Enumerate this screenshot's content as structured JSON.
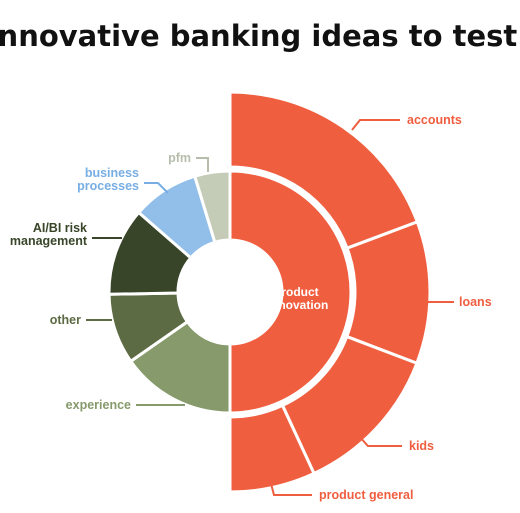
{
  "chart_data": {
    "type": "pie",
    "subtype": "sunburst",
    "title": "Innovative banking ideas to test",
    "inner_ring": [
      {
        "name": "product innovation",
        "value": 50,
        "color": "#f05e40"
      },
      {
        "name": "experience",
        "value": 15.3,
        "color": "#879a6c"
      },
      {
        "name": "other",
        "value": 9.4,
        "color": "#5c6b44"
      },
      {
        "name": "AI/BI risk management",
        "value": 11.7,
        "color": "#384529"
      },
      {
        "name": "business processes",
        "value": 8.9,
        "color": "#92bfe9"
      },
      {
        "name": "pfm",
        "value": 4.7,
        "color": "#c4cbb6"
      }
    ],
    "outer_ring": [
      {
        "name": "accounts",
        "value": 19.3,
        "parent": "product innovation",
        "color": "#f05e40"
      },
      {
        "name": "loans",
        "value": 11.5,
        "parent": "product innovation",
        "color": "#f05e40"
      },
      {
        "name": "kids",
        "value": 12.3,
        "parent": "product innovation",
        "color": "#f05e40"
      },
      {
        "name": "product general",
        "value": 6.9,
        "parent": "product innovation",
        "color": "#f05e40"
      }
    ],
    "labels": [
      {
        "text": "accounts",
        "color": "#f05e40"
      },
      {
        "text": "loans",
        "color": "#f05e40"
      },
      {
        "text": "kids",
        "color": "#f05e40"
      },
      {
        "text": "product general",
        "color": "#f05e40"
      },
      {
        "text": "experience",
        "color": "#879a6c"
      },
      {
        "text": "other",
        "color": "#5c6b44"
      },
      {
        "text": "AI/BI risk\nmanagement",
        "color": "#384529"
      },
      {
        "text": "business\nprocesses",
        "color": "#78aee3"
      },
      {
        "text": "pfm",
        "color": "#b6bdaa"
      }
    ]
  }
}
